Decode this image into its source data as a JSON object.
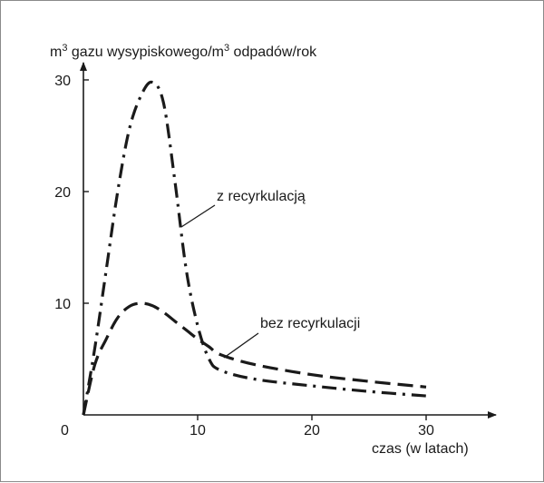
{
  "chart_data": {
    "type": "line",
    "ylabel_parts": [
      "m",
      "3",
      " gazu wysypiskowego/m",
      "3",
      " odpadów/rok"
    ],
    "xlabel": "czas (w latach)",
    "xlim": [
      0,
      35
    ],
    "ylim": [
      0,
      32
    ],
    "x_ticks": [
      10,
      20,
      30
    ],
    "y_ticks": [
      10,
      20,
      30
    ],
    "origin_label": "0",
    "series": [
      {
        "name": "z recyrkulacją",
        "style": "dash-dot",
        "points": [
          [
            0,
            0
          ],
          [
            1,
            6
          ],
          [
            2,
            13
          ],
          [
            3,
            20
          ],
          [
            4,
            25.5
          ],
          [
            5,
            28.5
          ],
          [
            6,
            29.8
          ],
          [
            7,
            28
          ],
          [
            8,
            21
          ],
          [
            9,
            13
          ],
          [
            10,
            8
          ],
          [
            11,
            5
          ],
          [
            12,
            4
          ],
          [
            15,
            3.2
          ],
          [
            20,
            2.6
          ],
          [
            25,
            2.1
          ],
          [
            30,
            1.7
          ]
        ]
      },
      {
        "name": "bez recyrkulacji",
        "style": "dash",
        "points": [
          [
            0,
            0
          ],
          [
            1,
            4.5
          ],
          [
            2,
            6.8
          ],
          [
            3,
            8.7
          ],
          [
            4,
            9.7
          ],
          [
            5,
            10
          ],
          [
            6,
            9.8
          ],
          [
            7,
            9.2
          ],
          [
            8,
            8.4
          ],
          [
            9,
            7.6
          ],
          [
            10,
            6.8
          ],
          [
            11,
            6.1
          ],
          [
            12,
            5.4
          ],
          [
            15,
            4.5
          ],
          [
            20,
            3.6
          ],
          [
            25,
            3
          ],
          [
            30,
            2.5
          ]
        ]
      }
    ],
    "annotations": [
      {
        "text": "z recyrkulacją",
        "series": 0
      },
      {
        "text": "bez recyrkulacji",
        "series": 1
      }
    ]
  }
}
